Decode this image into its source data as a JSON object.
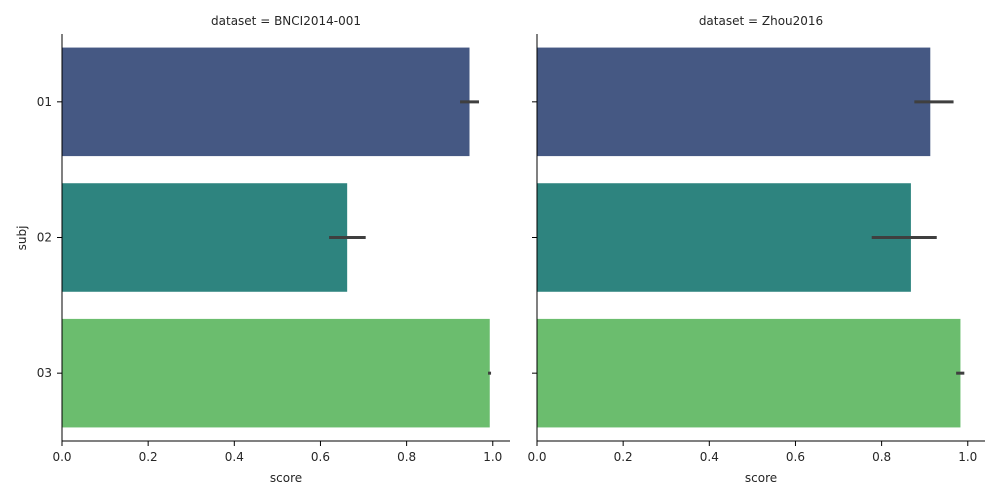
{
  "chart_data": {
    "type": "bar",
    "orientation": "horizontal",
    "ylabel": "subj",
    "xlabel": "score",
    "categories": [
      "01",
      "02",
      "03"
    ],
    "xlim": [
      0.0,
      1.04
    ],
    "xticks": [
      "0.0",
      "0.2",
      "0.4",
      "0.6",
      "0.8",
      "1.0"
    ],
    "xtick_values": [
      0.0,
      0.2,
      0.4,
      0.6,
      0.8,
      1.0
    ],
    "colors": [
      "#455883",
      "#2e847f",
      "#6bbd6e"
    ],
    "errorbar_color": "#3f3f3f",
    "grid": false,
    "facets": [
      {
        "title": "dataset = BNCI2014-001",
        "values": [
          0.946,
          0.662,
          0.993
        ],
        "ci_low": [
          0.924,
          0.62,
          0.989
        ],
        "ci_high": [
          0.968,
          0.705,
          0.996
        ]
      },
      {
        "title": "dataset = Zhou2016",
        "values": [
          0.913,
          0.868,
          0.983
        ],
        "ci_low": [
          0.876,
          0.777,
          0.973
        ],
        "ci_high": [
          0.967,
          0.928,
          0.992
        ]
      }
    ]
  }
}
